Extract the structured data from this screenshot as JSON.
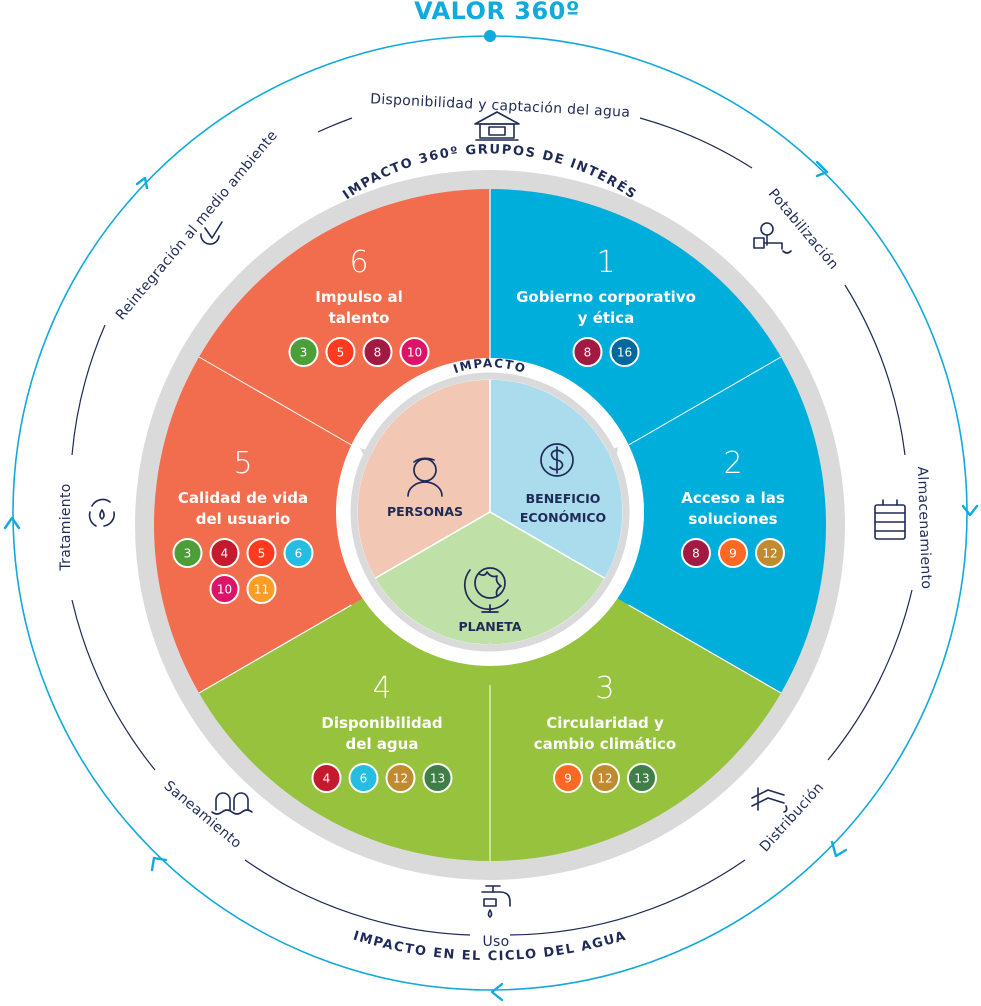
{
  "title": "VALOR 360º",
  "ring_labels": {
    "top": "IMPACTO 360º GRUPOS DE INTERÉS",
    "inner": "IMPACTO",
    "bottom": "IMPACTO EN EL CICLO DEL AGUA"
  },
  "cycle_stages": [
    {
      "label": "Disponibilidad y captación del agua",
      "icon": "water-tank-icon"
    },
    {
      "label": "Potabilización",
      "icon": "treatment-plant-icon"
    },
    {
      "label": "Almacenamiento",
      "icon": "storage-tank-icon"
    },
    {
      "label": "Distribución",
      "icon": "pipe-icon"
    },
    {
      "label": "Uso",
      "icon": "faucet-icon"
    },
    {
      "label": "Saneamiento",
      "icon": "sewer-icon"
    },
    {
      "label": "Tratamiento",
      "icon": "recycle-icon"
    },
    {
      "label": "Reintegración al medio ambiente",
      "icon": "leaf-drop-icon"
    }
  ],
  "segments": [
    {
      "number": "1",
      "line1": "Gobierno corporativo",
      "line2": "y ética",
      "color": "#00aedb",
      "badges": [
        "8",
        "16"
      ]
    },
    {
      "number": "2",
      "line1": "Acceso a las",
      "line2": "soluciones",
      "color": "#00aedb",
      "badges": [
        "8",
        "9",
        "12"
      ]
    },
    {
      "number": "3",
      "line1": "Circularidad y",
      "line2": "cambio climático",
      "color": "#96c23e",
      "badges": [
        "9",
        "12",
        "13"
      ]
    },
    {
      "number": "4",
      "line1": "Disponibilidad",
      "line2": "del agua",
      "color": "#96c23e",
      "badges": [
        "4",
        "6",
        "12",
        "13"
      ]
    },
    {
      "number": "5",
      "line1": "Calidad de vida",
      "line2": "del usuario",
      "color": "#f26d4d",
      "badges": [
        "3",
        "4",
        "5",
        "6",
        "10",
        "11"
      ]
    },
    {
      "number": "6",
      "line1": "Impulso al",
      "line2": "talento",
      "color": "#f26d4d",
      "badges": [
        "3",
        "5",
        "8",
        "10"
      ]
    }
  ],
  "sdg_colors": {
    "3": "#4c9f38",
    "4": "#c5192d",
    "5": "#ff3a21",
    "6": "#26bde2",
    "8": "#a21942",
    "9": "#fd6925",
    "10": "#dd1367",
    "11": "#fd9d24",
    "12": "#bf8b2e",
    "13": "#3f7e44",
    "16": "#00689d"
  },
  "core": [
    {
      "line1": "PERSONAS",
      "line2": "",
      "color": "#f2c8b4",
      "icon": "person-icon"
    },
    {
      "line1": "BENEFICIO",
      "line2": "ECONÓMICO",
      "color": "#aadced",
      "icon": "dollar-icon"
    },
    {
      "line1": "PLANETA",
      "line2": "",
      "color": "#bfe1a8",
      "icon": "globe-icon"
    }
  ],
  "colors": {
    "accent_blue": "#12a9dc",
    "navy": "#1f2a57",
    "ring_gray": "#d9d9d9"
  }
}
